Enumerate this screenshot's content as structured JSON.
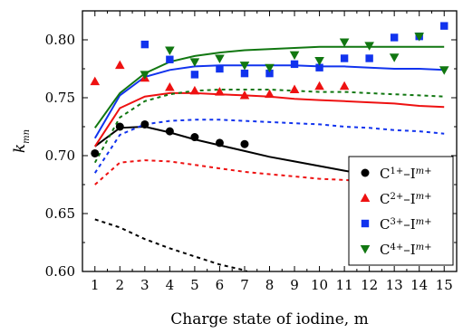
{
  "chart_data": {
    "type": "scatter",
    "xlabel": "Charge state of iodine, m",
    "ylabel_main": "k",
    "ylabel_sub": "mn",
    "xlim": [
      0.5,
      15.5
    ],
    "ylim": [
      0.6,
      0.825
    ],
    "xticks": [
      1,
      2,
      3,
      4,
      5,
      6,
      7,
      8,
      9,
      10,
      11,
      12,
      13,
      14,
      15
    ],
    "yticks": [
      0.6,
      0.65,
      0.7,
      0.75,
      0.8
    ],
    "ytick_labels": [
      "0.60",
      "0.65",
      "0.70",
      "0.75",
      "0.80"
    ],
    "legend_position": "right",
    "series": [
      {
        "key": "c1",
        "legend_base": "C",
        "legend_sup1": "1+",
        "legend_mid": "–I",
        "legend_sup2": "m+",
        "color": "#000000",
        "marker": "circle",
        "points": [
          [
            1,
            0.702
          ],
          [
            2,
            0.725
          ],
          [
            3,
            0.727
          ],
          [
            4,
            0.721
          ],
          [
            5,
            0.716
          ],
          [
            6,
            0.711
          ],
          [
            7,
            0.71
          ]
        ],
        "solid": [
          [
            1,
            0.708
          ],
          [
            2,
            0.724
          ],
          [
            3,
            0.725
          ],
          [
            4,
            0.72
          ],
          [
            5,
            0.714
          ],
          [
            6,
            0.709
          ],
          [
            7,
            0.704
          ],
          [
            8,
            0.699
          ],
          [
            9,
            0.695
          ],
          [
            10,
            0.691
          ],
          [
            11,
            0.687
          ],
          [
            12,
            0.683
          ],
          [
            13,
            0.68
          ],
          [
            14,
            0.678
          ],
          [
            15,
            0.676
          ]
        ],
        "dashed": [
          [
            1,
            0.645
          ],
          [
            2,
            0.638
          ],
          [
            3,
            0.628
          ],
          [
            4,
            0.62
          ],
          [
            5,
            0.613
          ],
          [
            6,
            0.606
          ],
          [
            7,
            0.601
          ],
          [
            7.1,
            0.6
          ]
        ]
      },
      {
        "key": "c2",
        "legend_base": "C",
        "legend_sup1": "2+",
        "legend_mid": "–I",
        "legend_sup2": "m+",
        "color": "#ee1111",
        "marker": "triangle-up",
        "points": [
          [
            1,
            0.764
          ],
          [
            2,
            0.778
          ],
          [
            3,
            0.767
          ],
          [
            4,
            0.759
          ],
          [
            5,
            0.756
          ],
          [
            6,
            0.755
          ],
          [
            7,
            0.752
          ],
          [
            8,
            0.753
          ],
          [
            9,
            0.757
          ],
          [
            10,
            0.76
          ],
          [
            11,
            0.76
          ]
        ],
        "solid": [
          [
            1,
            0.708
          ],
          [
            2,
            0.741
          ],
          [
            3,
            0.751
          ],
          [
            4,
            0.754
          ],
          [
            5,
            0.754
          ],
          [
            6,
            0.753
          ],
          [
            7,
            0.752
          ],
          [
            8,
            0.751
          ],
          [
            9,
            0.749
          ],
          [
            10,
            0.748
          ],
          [
            11,
            0.747
          ],
          [
            12,
            0.746
          ],
          [
            13,
            0.745
          ],
          [
            14,
            0.743
          ],
          [
            15,
            0.742
          ]
        ],
        "dashed": [
          [
            1,
            0.675
          ],
          [
            2,
            0.694
          ],
          [
            3,
            0.696
          ],
          [
            4,
            0.695
          ],
          [
            5,
            0.692
          ],
          [
            6,
            0.689
          ],
          [
            7,
            0.686
          ],
          [
            8,
            0.684
          ],
          [
            9,
            0.682
          ],
          [
            10,
            0.68
          ],
          [
            11,
            0.679
          ],
          [
            12,
            0.678
          ],
          [
            13,
            0.677
          ],
          [
            14,
            0.676
          ],
          [
            15,
            0.675
          ]
        ]
      },
      {
        "key": "c3",
        "legend_base": "C",
        "legend_sup1": "3+",
        "legend_mid": "–I",
        "legend_sup2": "m+",
        "color": "#1133ee",
        "marker": "square",
        "points": [
          [
            3,
            0.796
          ],
          [
            4,
            0.783
          ],
          [
            5,
            0.77
          ],
          [
            6,
            0.775
          ],
          [
            7,
            0.771
          ],
          [
            8,
            0.771
          ],
          [
            9,
            0.779
          ],
          [
            10,
            0.776
          ],
          [
            11,
            0.784
          ],
          [
            12,
            0.784
          ],
          [
            13,
            0.802
          ],
          [
            14,
            0.803
          ],
          [
            15,
            0.812
          ]
        ],
        "solid": [
          [
            1,
            0.715
          ],
          [
            2,
            0.752
          ],
          [
            3,
            0.768
          ],
          [
            4,
            0.774
          ],
          [
            5,
            0.777
          ],
          [
            6,
            0.778
          ],
          [
            7,
            0.778
          ],
          [
            8,
            0.778
          ],
          [
            9,
            0.778
          ],
          [
            10,
            0.777
          ],
          [
            11,
            0.777
          ],
          [
            12,
            0.776
          ],
          [
            13,
            0.775
          ],
          [
            14,
            0.775
          ],
          [
            15,
            0.774
          ]
        ],
        "dashed": [
          [
            1,
            0.685
          ],
          [
            2,
            0.718
          ],
          [
            3,
            0.727
          ],
          [
            4,
            0.73
          ],
          [
            5,
            0.731
          ],
          [
            6,
            0.731
          ],
          [
            7,
            0.73
          ],
          [
            8,
            0.729
          ],
          [
            9,
            0.728
          ],
          [
            10,
            0.727
          ],
          [
            11,
            0.725
          ],
          [
            12,
            0.724
          ],
          [
            13,
            0.722
          ],
          [
            14,
            0.721
          ],
          [
            15,
            0.719
          ]
        ]
      },
      {
        "key": "c4",
        "legend_base": "C",
        "legend_sup1": "4+",
        "legend_mid": "–I",
        "legend_sup2": "m+",
        "color": "#117711",
        "marker": "triangle-down",
        "points": [
          [
            3,
            0.77
          ],
          [
            4,
            0.791
          ],
          [
            5,
            0.781
          ],
          [
            6,
            0.784
          ],
          [
            7,
            0.778
          ],
          [
            8,
            0.776
          ],
          [
            9,
            0.787
          ],
          [
            10,
            0.782
          ],
          [
            11,
            0.798
          ],
          [
            12,
            0.795
          ],
          [
            13,
            0.785
          ],
          [
            14,
            0.803
          ],
          [
            15,
            0.774
          ]
        ],
        "solid": [
          [
            1,
            0.724
          ],
          [
            2,
            0.754
          ],
          [
            3,
            0.771
          ],
          [
            4,
            0.781
          ],
          [
            5,
            0.786
          ],
          [
            6,
            0.789
          ],
          [
            7,
            0.791
          ],
          [
            8,
            0.792
          ],
          [
            9,
            0.793
          ],
          [
            10,
            0.794
          ],
          [
            11,
            0.794
          ],
          [
            12,
            0.794
          ],
          [
            13,
            0.794
          ],
          [
            14,
            0.794
          ],
          [
            15,
            0.794
          ]
        ],
        "dashed": [
          [
            1,
            0.694
          ],
          [
            2,
            0.733
          ],
          [
            3,
            0.747
          ],
          [
            4,
            0.753
          ],
          [
            5,
            0.756
          ],
          [
            6,
            0.757
          ],
          [
            7,
            0.757
          ],
          [
            8,
            0.757
          ],
          [
            9,
            0.756
          ],
          [
            10,
            0.755
          ],
          [
            11,
            0.755
          ],
          [
            12,
            0.754
          ],
          [
            13,
            0.753
          ],
          [
            14,
            0.752
          ],
          [
            15,
            0.751
          ]
        ]
      }
    ]
  }
}
